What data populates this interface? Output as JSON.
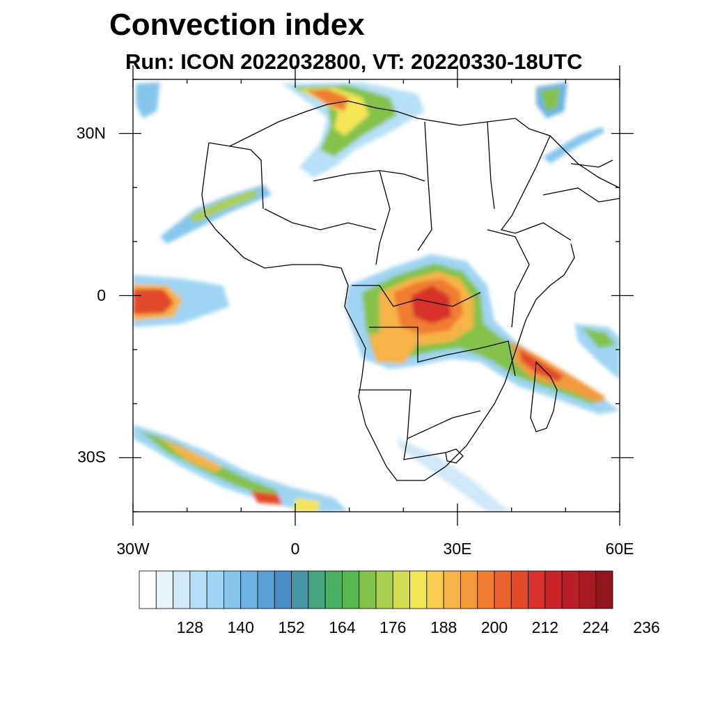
{
  "title": "Convection index",
  "subtitle": "Run: ICON 2022032800,  VT: 20220330-18UTC",
  "map": {
    "lon_range": [
      -30,
      60
    ],
    "lat_range": [
      -40,
      40
    ],
    "y_ticks": [
      {
        "lat": 30,
        "label": "30N"
      },
      {
        "lat": 0,
        "label": "0"
      },
      {
        "lat": -30,
        "label": "30S"
      }
    ],
    "x_ticks": [
      {
        "lon": -30,
        "label": "30W"
      },
      {
        "lon": 0,
        "label": "0"
      },
      {
        "lon": 30,
        "label": "30E"
      },
      {
        "lon": 60,
        "label": "60E"
      }
    ]
  },
  "colorbar": {
    "colors": [
      "#ffffff",
      "#e8f4fc",
      "#cfe9f8",
      "#b6e0f7",
      "#9fd5f2",
      "#87c6ec",
      "#6eb4e3",
      "#5a9fd6",
      "#4a8dc7",
      "#4696a6",
      "#47a57f",
      "#4aae63",
      "#55b74e",
      "#84c24b",
      "#aacf4f",
      "#d4dd52",
      "#f3e556",
      "#f7ce4f",
      "#f6b347",
      "#f39a3d",
      "#ef7e33",
      "#e9612d",
      "#e24a2a",
      "#d73229",
      "#c92428",
      "#b81f26",
      "#a61b23",
      "#8f161f"
    ],
    "labels": [
      "128",
      "140",
      "152",
      "164",
      "176",
      "188",
      "200",
      "212",
      "224",
      "236"
    ]
  }
}
